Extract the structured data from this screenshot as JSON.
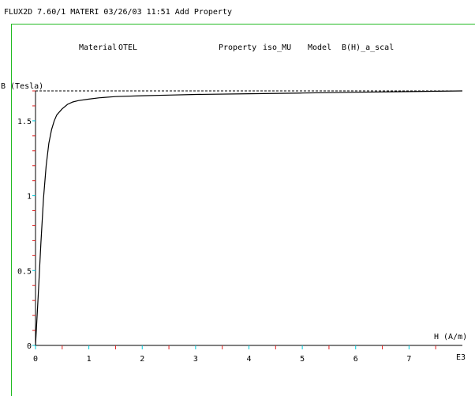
{
  "window": {
    "title": "FLUX2D 7.60/1 MATERI 03/26/03 11:51 Add Property"
  },
  "header": {
    "material_label": "Material",
    "material_value": "OTEL",
    "property_label": "Property",
    "property_value": "iso_MU",
    "model_label": "Model",
    "model_value": "B(H)_a_scal"
  },
  "chart_data": {
    "type": "line",
    "ylabel": "B (Tesla)",
    "xlabel": "H (A/m)",
    "x_multiplier_label": "E3",
    "xlim": [
      0,
      8
    ],
    "ylim": [
      0,
      1.7
    ],
    "x_ticks": [
      "0",
      "1",
      "2",
      "3",
      "4",
      "5",
      "6",
      "7"
    ],
    "y_ticks": [
      "0",
      "0.5",
      "1",
      "1.5"
    ],
    "saturation_line": 1.7,
    "x": [
      0,
      0.05,
      0.1,
      0.15,
      0.2,
      0.25,
      0.3,
      0.35,
      0.4,
      0.5,
      0.6,
      0.7,
      0.8,
      1.0,
      1.2,
      1.5,
      2.0,
      2.5,
      3.0,
      4.0,
      5.0,
      6.0,
      7.0,
      8.0
    ],
    "y": [
      0,
      0.33,
      0.68,
      0.98,
      1.2,
      1.35,
      1.44,
      1.5,
      1.54,
      1.58,
      1.61,
      1.626,
      1.635,
      1.645,
      1.654,
      1.662,
      1.668,
      1.672,
      1.676,
      1.681,
      1.686,
      1.691,
      1.695,
      1.7
    ],
    "colors": {
      "axis": "#000000",
      "major_tick": "#00c8d8",
      "minor_tick": "#e02020",
      "frame": "#22bb22",
      "curve": "#000000"
    }
  }
}
